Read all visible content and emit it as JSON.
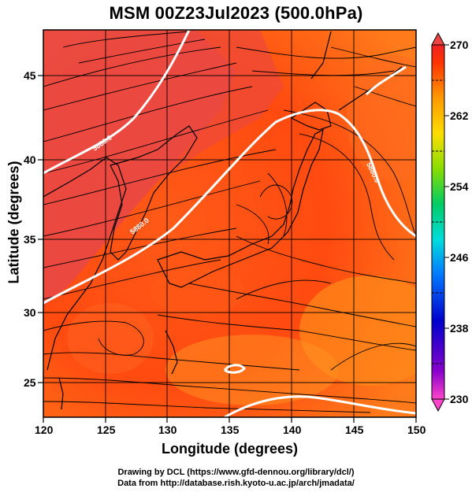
{
  "title": "MSM 00Z23Jul2023 (500.0hPa)",
  "axes": {
    "xlabel": "Longitude (degrees)",
    "ylabel": "Latitude  (degrees)",
    "xticks": [
      "120",
      "125",
      "130",
      "135",
      "140",
      "145",
      "150"
    ],
    "yticks": [
      "25",
      "30",
      "35",
      "40",
      "45"
    ],
    "xlim": [
      120,
      150
    ],
    "ylim": [
      22.4,
      47.6
    ]
  },
  "colorbar": {
    "labels": [
      "270",
      "262",
      "254",
      "246",
      "238",
      "230"
    ],
    "range": [
      230,
      270
    ],
    "colors": [
      "#ff44cc",
      "#8800cc",
      "#0000cc",
      "#0077ff",
      "#00dddd",
      "#00cc66",
      "#88dd00",
      "#ffdd00",
      "#ff9900",
      "#ff3300",
      "#ee2222"
    ]
  },
  "contour_labels": [
    "5880.0",
    "5880.0",
    "5880.0"
  ],
  "credits": {
    "line1": "Drawing by DCL (https://www.gfd-dennou.org/library/dcl/)",
    "line2": "Data from http://database.rish.kyoto-u.ac.jp/arch/jmadata/"
  },
  "colors": {
    "high": "#e84030",
    "mid": "#ff6a1a",
    "low": "#ff9a1a"
  }
}
